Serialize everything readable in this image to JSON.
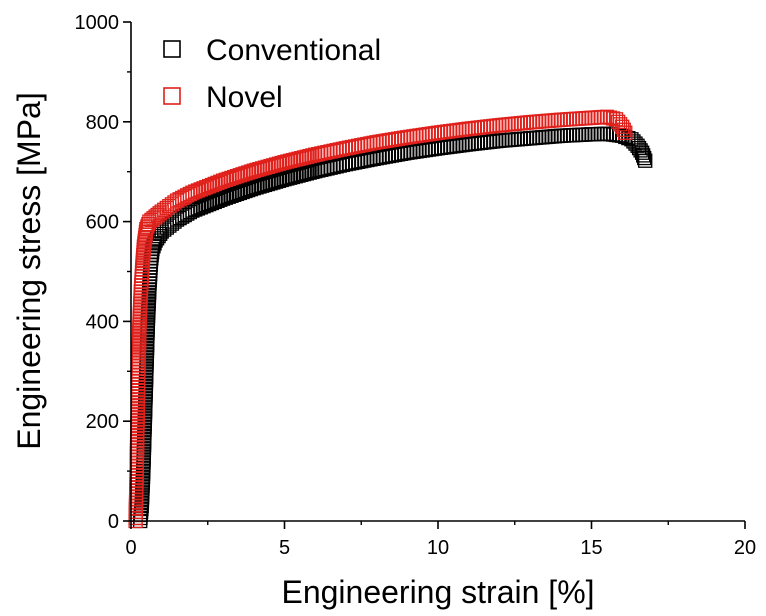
{
  "chart_data": {
    "type": "scatter",
    "xlabel": "Engineering strain [%]",
    "ylabel": "Engineering stress [MPa]",
    "xlim": [
      0,
      20
    ],
    "ylim": [
      0,
      1000
    ],
    "x_ticks": [
      "0",
      "5",
      "10",
      "15",
      "20"
    ],
    "y_ticks": [
      "0",
      "200",
      "400",
      "600",
      "800",
      "1000"
    ],
    "legend_position": "top-left",
    "marker": "hollow-square",
    "series": [
      {
        "name": "Conventional",
        "color": "#000000",
        "points": [
          [
            0.3,
            0
          ],
          [
            0.35,
            30
          ],
          [
            0.4,
            100
          ],
          [
            0.45,
            200
          ],
          [
            0.5,
            300
          ],
          [
            0.55,
            400
          ],
          [
            0.6,
            470
          ],
          [
            0.65,
            520
          ],
          [
            0.7,
            545
          ],
          [
            0.8,
            562
          ],
          [
            1.0,
            580
          ],
          [
            1.5,
            604
          ],
          [
            2.0,
            622
          ],
          [
            3.0,
            646
          ],
          [
            4.0,
            667
          ],
          [
            5.0,
            685
          ],
          [
            6.0,
            701
          ],
          [
            7.0,
            715
          ],
          [
            8.0,
            727
          ],
          [
            9.0,
            738
          ],
          [
            10.0,
            747
          ],
          [
            11.0,
            755
          ],
          [
            12.0,
            762
          ],
          [
            13.0,
            767
          ],
          [
            14.0,
            772
          ],
          [
            15.0,
            775
          ],
          [
            15.5,
            776
          ],
          [
            16.0,
            772
          ],
          [
            16.3,
            765
          ],
          [
            16.5,
            752
          ],
          [
            16.65,
            738
          ],
          [
            16.75,
            722
          ]
        ]
      },
      {
        "name": "Novel",
        "color": "#e0201b",
        "points": [
          [
            0.15,
            0
          ],
          [
            0.18,
            80
          ],
          [
            0.2,
            160
          ],
          [
            0.23,
            250
          ],
          [
            0.25,
            330
          ],
          [
            0.28,
            400
          ],
          [
            0.32,
            460
          ],
          [
            0.37,
            510
          ],
          [
            0.42,
            550
          ],
          [
            0.5,
            585
          ],
          [
            0.6,
            600
          ],
          [
            0.8,
            610
          ],
          [
            1.0,
            620
          ],
          [
            1.5,
            642
          ],
          [
            2.0,
            658
          ],
          [
            3.0,
            682
          ],
          [
            4.0,
            702
          ],
          [
            5.0,
            719
          ],
          [
            6.0,
            734
          ],
          [
            7.0,
            747
          ],
          [
            8.0,
            759
          ],
          [
            9.0,
            769
          ],
          [
            10.0,
            778
          ],
          [
            11.0,
            786
          ],
          [
            12.0,
            793
          ],
          [
            13.0,
            799
          ],
          [
            14.0,
            804
          ],
          [
            15.0,
            808
          ],
          [
            15.5,
            810
          ],
          [
            15.8,
            805
          ],
          [
            16.0,
            790
          ],
          [
            16.1,
            778
          ]
        ]
      }
    ]
  }
}
